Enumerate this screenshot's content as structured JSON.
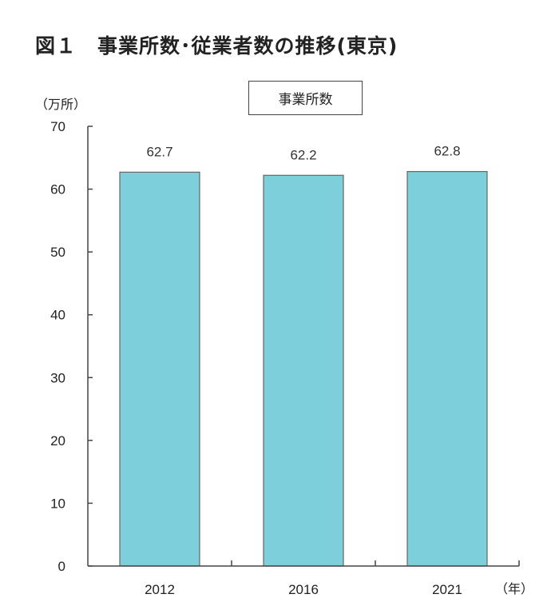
{
  "title": "図１　事業所数･従業者数の推移(東京)",
  "y_unit": "（万所）",
  "legend": "事業所数",
  "x_unit": "（年）",
  "colors": {
    "bar": "#7ccfdb",
    "bar_border": "#666666",
    "axis": "#444444"
  },
  "chart_data": {
    "type": "bar",
    "title": "図１　事業所数･従業者数の推移(東京)",
    "categories": [
      "2012",
      "2016",
      "2021"
    ],
    "series": [
      {
        "name": "事業所数",
        "values": [
          62.7,
          62.2,
          62.8
        ]
      }
    ],
    "value_labels": [
      "62.7",
      "62.2",
      "62.8"
    ],
    "xlabel": "（年）",
    "ylabel": "（万所）",
    "ylim": [
      0,
      70
    ],
    "yticks": [
      0,
      10,
      20,
      30,
      40,
      50,
      60,
      70
    ],
    "grid": false,
    "legend_position": "top-center"
  }
}
